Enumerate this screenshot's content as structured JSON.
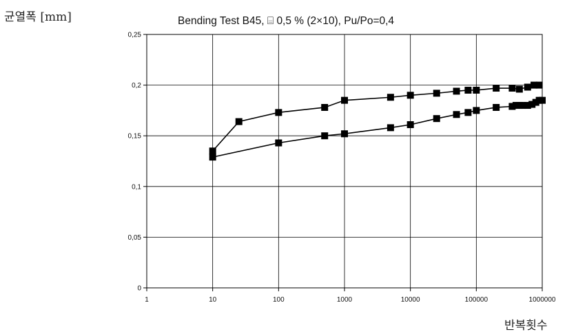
{
  "chart_data": {
    "type": "line",
    "title": "Bending Test  B45, ⌸ 0,5 % (2×10), Pu/Po=0,4",
    "xlabel": "반복횟수",
    "ylabel": "균열폭 [mm]",
    "x_scale": "log",
    "xlim": [
      1,
      1000000
    ],
    "ylim": [
      0,
      0.25
    ],
    "grid": true,
    "x_ticks": [
      "1",
      "10",
      "100",
      "1000",
      "10000",
      "100000",
      "1000000"
    ],
    "y_ticks": [
      "0",
      "0,05",
      "0,1",
      "0,15",
      "0,2",
      "0,25"
    ],
    "series": [
      {
        "marker": "square",
        "color": "#000000",
        "x": [
          10,
          25,
          100,
          500,
          1000,
          5000,
          10000,
          25000,
          50000,
          75000,
          100000,
          200000,
          350000,
          450000,
          600000,
          750000,
          900000
        ],
        "y": [
          0.135,
          0.164,
          0.173,
          0.178,
          0.185,
          0.188,
          0.19,
          0.192,
          0.194,
          0.195,
          0.195,
          0.197,
          0.197,
          0.196,
          0.198,
          0.2,
          0.2
        ]
      },
      {
        "marker": "square",
        "color": "#000000",
        "x": [
          10,
          100,
          500,
          1000,
          5000,
          10000,
          25000,
          50000,
          75000,
          100000,
          200000,
          350000,
          400000,
          450000,
          500000,
          600000,
          700000,
          800000,
          900000,
          1000000
        ],
        "y": [
          0.129,
          0.143,
          0.15,
          0.152,
          0.158,
          0.161,
          0.167,
          0.171,
          0.173,
          0.175,
          0.178,
          0.179,
          0.18,
          0.18,
          0.18,
          0.18,
          0.181,
          0.183,
          0.185,
          0.185
        ]
      }
    ]
  }
}
